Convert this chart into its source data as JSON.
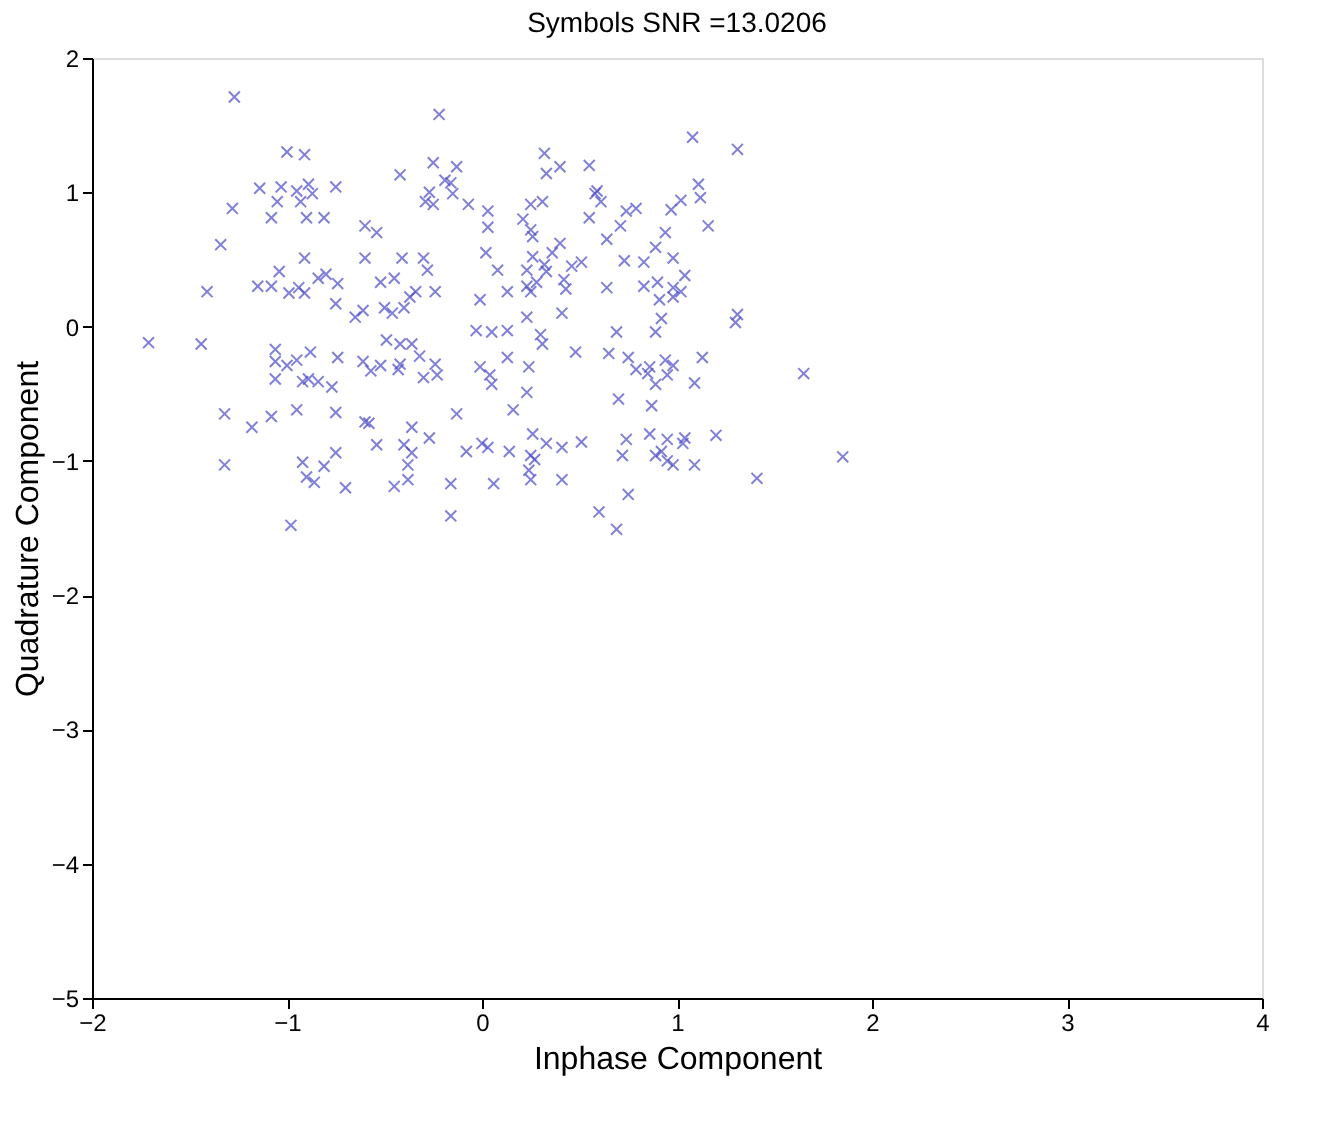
{
  "chart_data": {
    "type": "scatter",
    "title": "Symbols SNR =13.0206",
    "xlabel": "Inphase Component",
    "ylabel": "Quadrature Component",
    "xlim": [
      -2,
      4
    ],
    "xticks": [
      -2,
      -1,
      0,
      1,
      2,
      3,
      4
    ],
    "ylim": [
      -5,
      2
    ],
    "yticks": [
      -5,
      -4,
      -3,
      -2,
      -1,
      0,
      1,
      2
    ],
    "grid": false,
    "marker": "cross",
    "series": [
      {
        "color": "#4b4bc8",
        "x": [
          -1.27,
          -0.22,
          -1.0,
          -0.91,
          -0.42,
          -0.25,
          -0.13,
          -1.14,
          -1.03,
          -0.95,
          -0.89,
          -0.75,
          -1.05,
          -0.93,
          -0.87,
          -0.19,
          -0.16,
          -0.27,
          -0.29,
          -0.25,
          -0.15,
          -0.07,
          0.03,
          -1.28,
          -1.08,
          -0.9,
          -0.81,
          -0.6,
          -0.54,
          0.03,
          -1.34,
          -0.91,
          -0.6,
          -0.41,
          -0.3,
          -0.28,
          0.02,
          0.08,
          -1.41,
          -1.15,
          -1.08,
          -1.04,
          -0.99,
          -0.94,
          -0.91,
          -0.84,
          -0.8,
          -0.74,
          -0.75,
          -0.52,
          -0.45,
          -0.34,
          -0.37,
          -0.24,
          -0.01,
          0.13,
          -0.65,
          -0.61,
          -0.5,
          -0.46,
          -0.4,
          1.08,
          1.31,
          0.32,
          0.33,
          0.4,
          0.55,
          0.59,
          0.58,
          0.61,
          0.25,
          0.31,
          0.21,
          0.25,
          0.26,
          0.4,
          0.36,
          0.26,
          0.32,
          0.23,
          0.33,
          0.46,
          0.51,
          0.42,
          0.43,
          0.28,
          0.23,
          0.25,
          0.55,
          0.64,
          0.74,
          0.79,
          0.71,
          1.02,
          0.97,
          1.11,
          1.12,
          1.16,
          0.94,
          0.89,
          0.98,
          0.73,
          0.83,
          0.83,
          0.9,
          0.98,
          1.04,
          1.02,
          0.91,
          0.98,
          0.64,
          0.23,
          0.41,
          0.92,
          1.31,
          -1.44,
          -1.06,
          -1.06,
          -1.0,
          -0.95,
          -0.88,
          -0.74,
          -0.61,
          -0.57,
          -0.52,
          -0.49,
          -0.42,
          -0.36,
          -0.42,
          -0.43,
          -0.32,
          -0.24,
          -0.23,
          -0.3,
          -0.03,
          0.05,
          0.13,
          -0.01,
          0.04,
          0.05,
          0.13,
          -1.06,
          -0.92,
          -0.89,
          -0.84,
          -0.77,
          -1.32,
          -1.18,
          -1.08,
          -0.95,
          -0.75,
          -0.6,
          -0.58,
          -0.36,
          -0.27,
          -0.13,
          0.16,
          -0.54,
          -0.4,
          -0.36,
          -0.38,
          -0.38,
          -0.45,
          -0.75,
          -0.92,
          -0.81,
          -0.9,
          -0.86,
          -0.7,
          -0.08,
          0.0,
          0.03,
          0.14,
          -0.16,
          0.06,
          -0.16,
          -0.98,
          0.3,
          0.31,
          0.69,
          0.89,
          1.3,
          0.24,
          0.48,
          0.65,
          0.75,
          0.79,
          0.86,
          0.85,
          0.94,
          0.98,
          0.95,
          0.89,
          1.13,
          1.09,
          1.65,
          0.23,
          0.7,
          0.87,
          0.26,
          0.25,
          0.27,
          0.33,
          0.41,
          0.51,
          0.74,
          0.72,
          0.86,
          0.89,
          0.92,
          0.95,
          1.04,
          1.03,
          1.2,
          0.95,
          1.09,
          0.98,
          0.24,
          0.25,
          0.41,
          1.41,
          1.85,
          0.75,
          0.6,
          0.69,
          -1.71,
          -1.32
        ],
        "values": [
          1.71,
          1.58,
          1.3,
          1.28,
          1.13,
          1.22,
          1.19,
          1.03,
          1.04,
          1.01,
          1.06,
          1.04,
          0.93,
          0.93,
          0.99,
          1.09,
          1.07,
          1.0,
          0.93,
          0.91,
          0.99,
          0.91,
          0.86,
          0.88,
          0.81,
          0.81,
          0.81,
          0.75,
          0.7,
          0.74,
          0.61,
          0.51,
          0.51,
          0.51,
          0.51,
          0.42,
          0.55,
          0.42,
          0.26,
          0.3,
          0.3,
          0.41,
          0.25,
          0.29,
          0.25,
          0.36,
          0.39,
          0.32,
          0.17,
          0.33,
          0.36,
          0.26,
          0.22,
          0.26,
          0.2,
          0.26,
          0.07,
          0.12,
          0.14,
          0.1,
          0.14,
          1.41,
          1.32,
          1.29,
          1.14,
          1.19,
          1.2,
          1.01,
          0.99,
          0.93,
          0.91,
          0.93,
          0.8,
          0.72,
          0.67,
          0.62,
          0.55,
          0.52,
          0.46,
          0.42,
          0.41,
          0.45,
          0.48,
          0.35,
          0.28,
          0.33,
          0.3,
          0.26,
          0.81,
          0.65,
          0.86,
          0.88,
          0.75,
          0.94,
          0.87,
          1.06,
          0.96,
          0.75,
          0.7,
          0.59,
          0.51,
          0.49,
          0.48,
          0.3,
          0.33,
          0.29,
          0.38,
          0.26,
          0.2,
          0.22,
          0.29,
          0.07,
          0.1,
          0.06,
          0.09,
          -0.13,
          -0.17,
          -0.26,
          -0.29,
          -0.25,
          -0.19,
          -0.23,
          -0.26,
          -0.33,
          -0.29,
          -0.1,
          -0.13,
          -0.13,
          -0.28,
          -0.32,
          -0.22,
          -0.28,
          -0.36,
          -0.38,
          -0.03,
          -0.04,
          -0.03,
          -0.3,
          -0.36,
          -0.43,
          -0.23,
          -0.39,
          -0.41,
          -0.39,
          -0.41,
          -0.45,
          -0.65,
          -0.75,
          -0.67,
          -0.62,
          -0.64,
          -0.71,
          -0.72,
          -0.75,
          -0.83,
          -0.65,
          -0.62,
          -0.88,
          -0.88,
          -0.94,
          -1.03,
          -1.14,
          -1.19,
          -0.94,
          -1.01,
          -1.04,
          -1.12,
          -1.16,
          -1.2,
          -0.93,
          -0.87,
          -0.9,
          -0.93,
          -1.17,
          -1.17,
          -1.41,
          -1.48,
          -0.06,
          -0.13,
          -0.04,
          -0.04,
          0.03,
          -0.3,
          -0.19,
          -0.2,
          -0.23,
          -0.32,
          -0.3,
          -0.35,
          -0.25,
          -0.29,
          -0.36,
          -0.43,
          -0.23,
          -0.42,
          -0.35,
          -0.49,
          -0.54,
          -0.59,
          -0.8,
          -0.96,
          -0.99,
          -0.87,
          -0.9,
          -0.86,
          -0.84,
          -0.96,
          -0.8,
          -0.96,
          -0.93,
          -0.84,
          -0.83,
          -0.87,
          -0.81,
          -1.0,
          -1.03,
          -1.03,
          -1.07,
          -1.14,
          -1.14,
          -1.13,
          -0.97,
          -1.25,
          -1.38,
          -1.51,
          -0.12,
          -1.03
        ]
      }
    ]
  }
}
